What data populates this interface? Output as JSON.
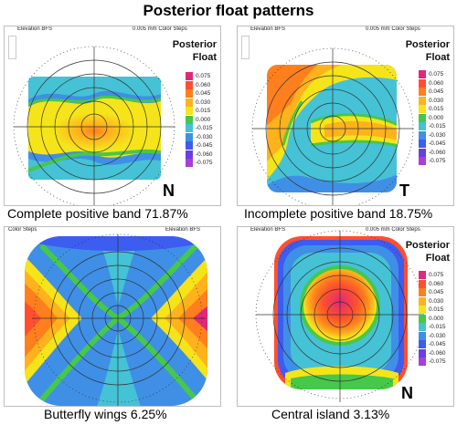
{
  "figure_title": "Posterior float patterns",
  "scale_values": [
    "0.075",
    "0.060",
    "0.045",
    "0.030",
    "0.015",
    "0.000",
    "-0.015",
    "-0.030",
    "-0.045",
    "-0.060",
    "-0.075"
  ],
  "scale_colors": [
    "#e0287a",
    "#ff4f2e",
    "#ff7f1e",
    "#ffb21c",
    "#f5e41a",
    "#46c84a",
    "#45c2d6",
    "#3f8fe6",
    "#3d5cf0",
    "#6a3fe0",
    "#a83fd6"
  ],
  "panels": [
    {
      "header_left": "Elevation BFS",
      "header_right": "0.005 mm Color Steps",
      "title_1": "Posterior",
      "title_2": "Float",
      "caption": "Complete positive band 71.87%",
      "letter": "N"
    },
    {
      "header_left": "Elevation BFS",
      "header_right": "0.005 mm Color Steps",
      "title_1": "Posterior",
      "title_2": "Float",
      "caption": "Incomplete positive band 18.75%",
      "letter": "T"
    },
    {
      "header_left": "Color Steps",
      "header_right": "Elevation BFS",
      "title_1": "",
      "title_2": "",
      "caption": "Butterfly wings 6.25%",
      "letter": ""
    },
    {
      "header_left": "Elevation BFS",
      "header_right": "0.005 mm Color Steps",
      "title_1": "Posterior",
      "title_2": "Float",
      "caption": "Central island 3.13%",
      "letter": "N"
    }
  ]
}
